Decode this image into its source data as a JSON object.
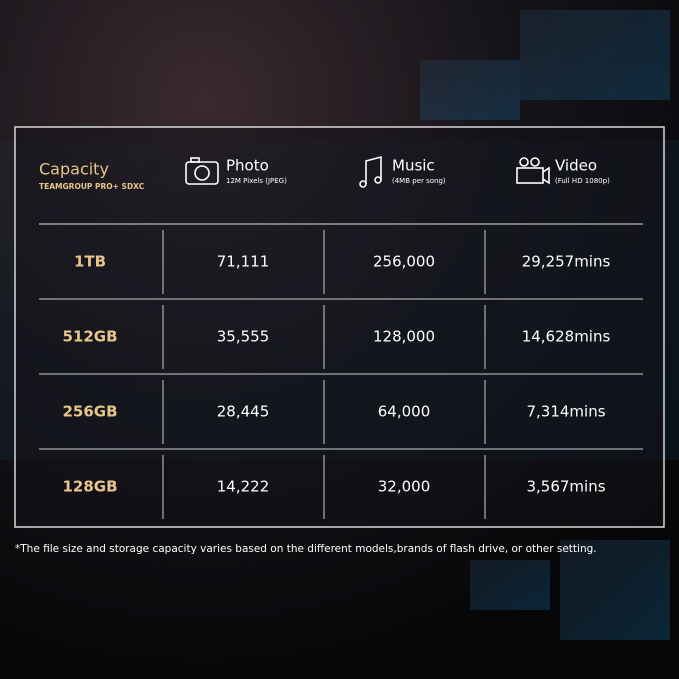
{
  "header": {
    "title": "Capacity",
    "subtitle": "TEAMGROUP PRO+ SDXC"
  },
  "columns": [
    {
      "title": "Photo",
      "subtitle": "12M Pixels (JPEG)"
    },
    {
      "title": "Music",
      "subtitle": "(4MB per song)"
    },
    {
      "title": "Video",
      "subtitle": "(Full HD 1080p)"
    }
  ],
  "table": {
    "rows": [
      [
        "1TB",
        "71,111",
        "256,000",
        "29,257mins"
      ],
      [
        "512GB",
        "35,555",
        "128,000",
        "14,628mins"
      ],
      [
        "256GB",
        "28,445",
        "64,000",
        "7,314mins"
      ],
      [
        "128GB",
        "14,222",
        "32,000",
        "3,567mins"
      ]
    ]
  },
  "footnote": "*The file size and storage capacity varies based on the different models,brands of flash drive, or other setting."
}
